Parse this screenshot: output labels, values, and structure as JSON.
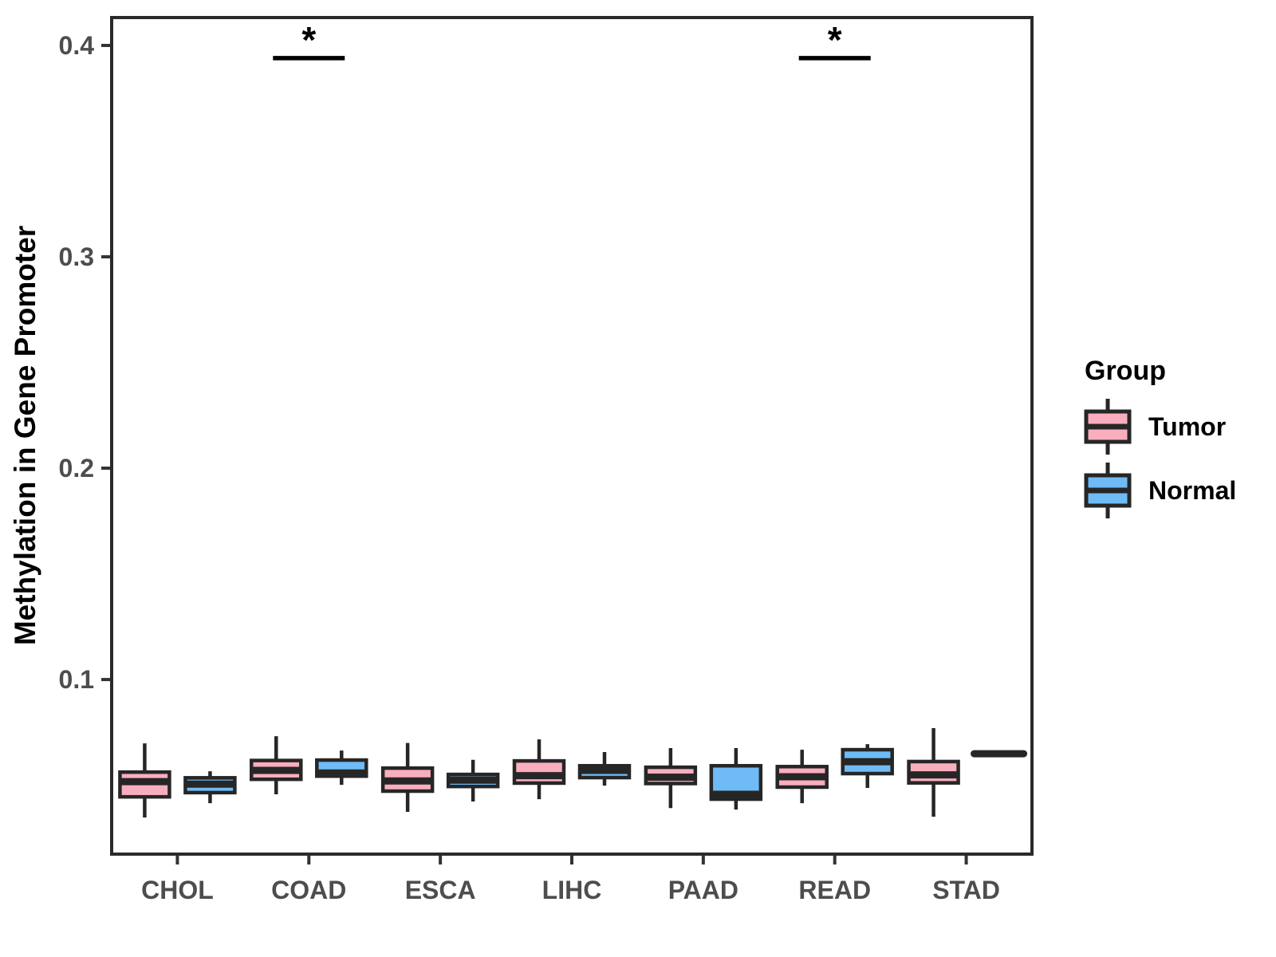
{
  "chart_data": {
    "type": "boxplot",
    "title": "",
    "xlabel": "",
    "ylabel": "Methylation in Gene Promoter",
    "ylim": [
      0.0174,
      0.4132
    ],
    "yticks": [
      0.1,
      0.2,
      0.3,
      0.4
    ],
    "ytick_labels": [
      "0.1",
      "0.2",
      "0.3",
      "0.4"
    ],
    "categories": [
      "CHOL",
      "COAD",
      "ESCA",
      "LIHC",
      "PAAD",
      "READ",
      "STAD"
    ],
    "series": [
      {
        "name": "Tumor",
        "color": "#F9AEBE",
        "boxes": [
          {
            "category": "CHOL",
            "min": 0.0347,
            "q1": 0.0445,
            "median": 0.0517,
            "q3": 0.0562,
            "max": 0.0698
          },
          {
            "category": "COAD",
            "min": 0.0457,
            "q1": 0.0528,
            "median": 0.057,
            "q3": 0.0617,
            "max": 0.0732
          },
          {
            "category": "ESCA",
            "min": 0.0374,
            "q1": 0.0472,
            "median": 0.052,
            "q3": 0.0581,
            "max": 0.07
          },
          {
            "category": "LIHC",
            "min": 0.0434,
            "q1": 0.051,
            "median": 0.0545,
            "q3": 0.0615,
            "max": 0.0717
          },
          {
            "category": "PAAD",
            "min": 0.0392,
            "q1": 0.0508,
            "median": 0.0538,
            "q3": 0.0585,
            "max": 0.0676
          },
          {
            "category": "READ",
            "min": 0.0415,
            "q1": 0.0491,
            "median": 0.054,
            "q3": 0.0588,
            "max": 0.0668
          },
          {
            "category": "STAD",
            "min": 0.0351,
            "q1": 0.0511,
            "median": 0.0549,
            "q3": 0.0612,
            "max": 0.077
          }
        ]
      },
      {
        "name": "Normal",
        "color": "#6FBBF5",
        "boxes": [
          {
            "category": "CHOL",
            "min": 0.0415,
            "q1": 0.0465,
            "median": 0.0505,
            "q3": 0.0535,
            "max": 0.0566
          },
          {
            "category": "COAD",
            "min": 0.0502,
            "q1": 0.0543,
            "median": 0.0558,
            "q3": 0.0619,
            "max": 0.0664
          },
          {
            "category": "ESCA",
            "min": 0.0423,
            "q1": 0.0494,
            "median": 0.0524,
            "q3": 0.0551,
            "max": 0.062
          },
          {
            "category": "LIHC",
            "min": 0.0498,
            "q1": 0.0536,
            "median": 0.057,
            "q3": 0.0592,
            "max": 0.0657
          },
          {
            "category": "PAAD",
            "min": 0.0385,
            "q1": 0.0434,
            "median": 0.0457,
            "q3": 0.0592,
            "max": 0.0676
          },
          {
            "category": "READ",
            "min": 0.0487,
            "q1": 0.0555,
            "median": 0.0611,
            "q3": 0.0668,
            "max": 0.0694
          },
          {
            "category": "STAD",
            "min": 0.0649,
            "q1": 0.0649,
            "median": 0.0649,
            "q3": 0.0649,
            "max": 0.0649
          }
        ]
      }
    ],
    "annotations": [
      {
        "category": "COAD",
        "label": "*",
        "y": 0.394
      },
      {
        "category": "READ",
        "label": "*",
        "y": 0.394
      }
    ],
    "legend": {
      "title": "Group",
      "position": "right",
      "entries": [
        {
          "label": "Tumor",
          "color": "#F9AEBE"
        },
        {
          "label": "Normal",
          "color": "#6FBBF5"
        }
      ]
    },
    "grid": false,
    "styles": {
      "box_border_color": "#262626",
      "panel_border_color": "#2a2a2a",
      "tick_color": "#333333",
      "axis_text_color": "#4d4d4d",
      "annotation_color": "#000000",
      "background": "#ffffff"
    }
  }
}
